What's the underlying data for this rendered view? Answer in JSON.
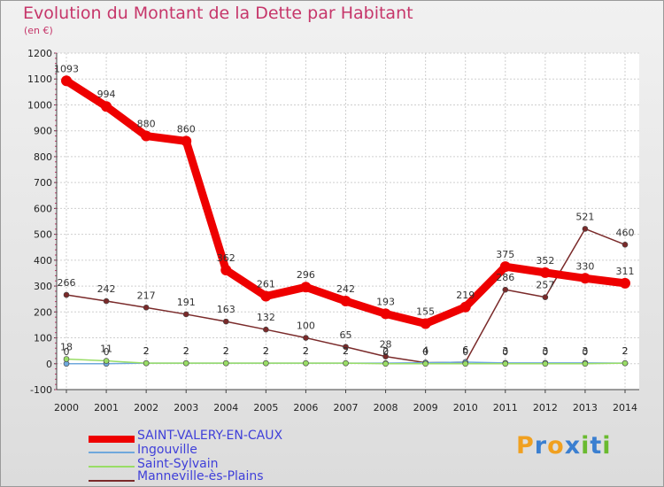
{
  "chart_data": {
    "type": "line",
    "title": "Evolution du Montant de la Dette par Habitant",
    "subtitle": "(en €)",
    "xlabel": "",
    "ylabel": "",
    "ylim": [
      -100,
      1200
    ],
    "yticks": [
      -100,
      0,
      100,
      200,
      300,
      400,
      500,
      600,
      700,
      800,
      900,
      1000,
      1100,
      1200
    ],
    "x": [
      "2000",
      "2001",
      "2002",
      "2003",
      "2004",
      "2005",
      "2006",
      "2007",
      "2008",
      "2009",
      "2010",
      "2011",
      "2012",
      "2013",
      "2014"
    ],
    "series": [
      {
        "name": "SAINT-VALERY-EN-CAUX",
        "color": "#ee0000",
        "values": [
          1093,
          994,
          880,
          860,
          362,
          261,
          296,
          242,
          193,
          155,
          219,
          375,
          352,
          330,
          311
        ]
      },
      {
        "name": "Ingouville",
        "color": "#6fa8dc",
        "values": [
          0,
          0,
          2,
          2,
          2,
          2,
          2,
          2,
          2,
          4,
          6,
          3,
          3,
          3,
          2
        ]
      },
      {
        "name": "Saint-Sylvain",
        "color": "#99dd66",
        "values": [
          18,
          11,
          2,
          2,
          2,
          2,
          2,
          2,
          0,
          0,
          0,
          0,
          0,
          0,
          2
        ]
      },
      {
        "name": "Manneville-ès-Plains",
        "color": "#7a2a2a",
        "values": [
          266,
          242,
          217,
          191,
          163,
          132,
          100,
          65,
          28,
          4,
          6,
          286,
          257,
          521,
          460
        ]
      }
    ],
    "labels_shown": {
      "SAINT-VALERY-EN-CAUX": [
        "1093",
        "994",
        "880",
        "860",
        "362",
        "261",
        "296",
        "242",
        "193",
        "155",
        "219",
        "375",
        "352",
        "330",
        "311"
      ],
      "Manneville-ès-Plains": [
        "266",
        "242",
        "217",
        "191",
        "163",
        "132",
        "100",
        "65",
        "28",
        "4",
        "6",
        "286",
        "257",
        "521",
        "460"
      ],
      "Ingouville": [
        "0",
        "0",
        "2",
        "2",
        "2",
        "2",
        "2",
        "2",
        "2",
        "4",
        "6",
        "3",
        "3",
        "3",
        "2"
      ],
      "Saint-Sylvain": [
        "18",
        "11",
        "2",
        "2",
        "2",
        "2",
        "2",
        "2",
        "0",
        "0",
        "0",
        "0",
        "0",
        "0",
        "2"
      ]
    },
    "grid": true
  },
  "logo": {
    "text": "Proxiti"
  }
}
